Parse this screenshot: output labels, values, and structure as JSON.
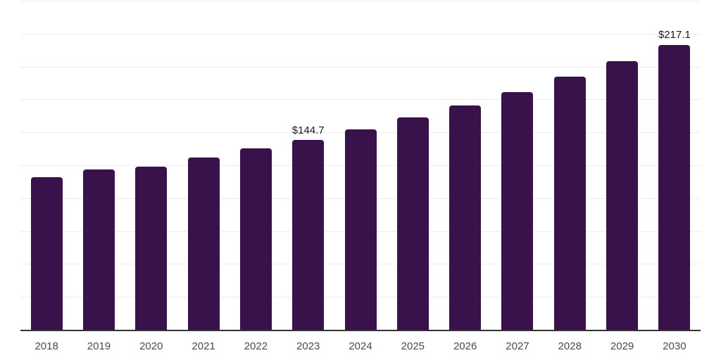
{
  "chart_data": {
    "type": "bar",
    "title": "",
    "xlabel": "",
    "ylabel": "",
    "categories": [
      "2018",
      "2019",
      "2020",
      "2021",
      "2022",
      "2023",
      "2024",
      "2025",
      "2026",
      "2027",
      "2028",
      "2029",
      "2030"
    ],
    "values": [
      116.6,
      122.2,
      124.7,
      131.3,
      138.2,
      144.7,
      152.9,
      161.7,
      171.0,
      181.2,
      193.0,
      204.8,
      217.1
    ],
    "value_labels": [
      "",
      "",
      "",
      "",
      "",
      "$144.7",
      "",
      "",
      "",
      "",
      "",
      "",
      "$217.1"
    ],
    "ylim": [
      0,
      250
    ],
    "gridline_step": 25,
    "grid": true,
    "legend": false,
    "y_tick_labels_shown": false,
    "colors": {
      "bar": "#39114b",
      "grid_line": "#ececec",
      "axis_line": "#333333",
      "x_tick_label": "#4a4a4a",
      "value_label": "#1a1a1a",
      "background": "#ffffff"
    }
  }
}
